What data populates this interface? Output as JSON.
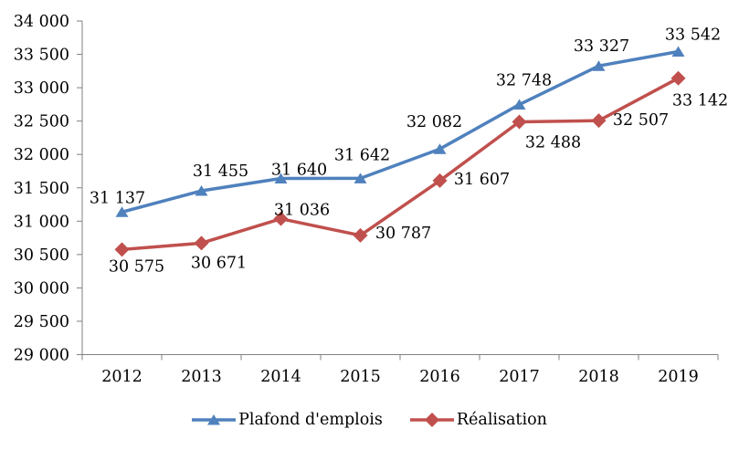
{
  "chart_data": {
    "type": "line",
    "title": "",
    "xlabel": "",
    "ylabel": "",
    "grid": false,
    "categories": [
      "2012",
      "2013",
      "2014",
      "2015",
      "2016",
      "2017",
      "2018",
      "2019"
    ],
    "series": [
      {
        "name": "Plafond d'emplois",
        "color": "#4F81BD",
        "marker": "triangle",
        "values": [
          31137,
          31455,
          31640,
          31642,
          32082,
          32748,
          33327,
          33542
        ],
        "data_labels": [
          "31 137",
          "31 455",
          "31 640",
          "31 642",
          "32 082",
          "32 748",
          "33 327",
          "33 542"
        ]
      },
      {
        "name": "Réalisation",
        "color": "#C0504D",
        "marker": "diamond",
        "values": [
          30575,
          30671,
          31036,
          30787,
          31607,
          32488,
          32507,
          33142
        ],
        "data_labels": [
          "30 575",
          "30 671",
          "31 036",
          "30 787",
          "31 607",
          "32 488",
          "32 507",
          "33 142"
        ]
      }
    ],
    "y_axis": {
      "min": 29000,
      "max": 34000,
      "step": 500,
      "tick_labels": [
        "29 000",
        "29 500",
        "30 000",
        "30 500",
        "31 000",
        "31 500",
        "32 000",
        "32 500",
        "33 000",
        "33 500",
        "34 000"
      ]
    },
    "legend": {
      "position": "bottom",
      "entries": [
        "Plafond d'emplois",
        "Réalisation"
      ]
    },
    "colors": {
      "axis": "#808080",
      "text": "#000000",
      "background": "#ffffff"
    }
  }
}
